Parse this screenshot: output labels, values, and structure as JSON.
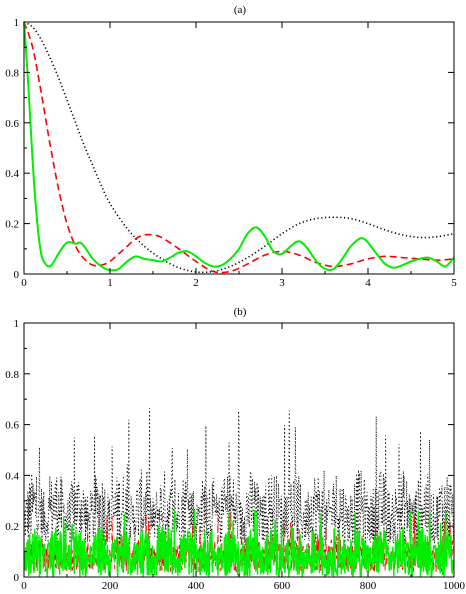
{
  "chart_data": [
    {
      "type": "line",
      "title": "(a)",
      "xlabel": "",
      "ylabel": "",
      "xlim": [
        0,
        5
      ],
      "ylim": [
        0,
        1
      ],
      "xticks": [
        "0",
        "1",
        "2",
        "3",
        "4",
        "5"
      ],
      "yticks": [
        "0",
        "0.2",
        "0.4",
        "0.6",
        "0.8",
        "1"
      ],
      "grid": false,
      "series": [
        {
          "style": "dotted",
          "color": "#000000",
          "x": [
            0,
            0.1,
            0.2,
            0.3,
            0.4,
            0.5,
            0.6,
            0.7,
            0.8,
            0.9,
            1.0,
            1.2,
            1.4,
            1.6,
            1.8,
            2.0,
            2.2,
            2.4,
            2.6,
            2.8,
            3.0,
            3.2,
            3.4,
            3.6,
            3.8,
            4.0,
            4.2,
            4.4,
            4.6,
            4.8,
            5.0
          ],
          "y": [
            1.0,
            0.98,
            0.93,
            0.86,
            0.78,
            0.69,
            0.6,
            0.51,
            0.43,
            0.35,
            0.28,
            0.18,
            0.11,
            0.06,
            0.025,
            0.008,
            0.01,
            0.03,
            0.065,
            0.11,
            0.16,
            0.2,
            0.22,
            0.225,
            0.22,
            0.2,
            0.175,
            0.155,
            0.145,
            0.148,
            0.16
          ]
        },
        {
          "style": "dashed",
          "color": "#ff0000",
          "x": [
            0,
            0.1,
            0.2,
            0.3,
            0.4,
            0.5,
            0.6,
            0.7,
            0.8,
            0.9,
            1.0,
            1.1,
            1.2,
            1.3,
            1.4,
            1.5,
            1.6,
            1.8,
            2.0,
            2.2,
            2.4,
            2.6,
            2.8,
            3.0,
            3.2,
            3.4,
            3.6,
            3.8,
            4.0,
            4.2,
            4.4,
            4.6,
            4.8,
            5.0
          ],
          "y": [
            1.0,
            0.9,
            0.72,
            0.52,
            0.34,
            0.2,
            0.11,
            0.06,
            0.035,
            0.035,
            0.05,
            0.08,
            0.11,
            0.14,
            0.155,
            0.155,
            0.145,
            0.1,
            0.05,
            0.01,
            0.01,
            0.04,
            0.075,
            0.09,
            0.075,
            0.045,
            0.03,
            0.04,
            0.06,
            0.07,
            0.065,
            0.06,
            0.055,
            0.06
          ]
        },
        {
          "style": "solid",
          "color": "#00ee00",
          "x": [
            0,
            0.05,
            0.1,
            0.15,
            0.2,
            0.25,
            0.3,
            0.35,
            0.4,
            0.5,
            0.6,
            0.65,
            0.7,
            0.8,
            0.9,
            1.0,
            1.1,
            1.2,
            1.3,
            1.4,
            1.5,
            1.6,
            1.7,
            1.8,
            1.9,
            2.0,
            2.1,
            2.2,
            2.3,
            2.4,
            2.5,
            2.6,
            2.7,
            2.8,
            2.9,
            3.0,
            3.1,
            3.2,
            3.3,
            3.4,
            3.5,
            3.6,
            3.7,
            3.8,
            3.9,
            3.95,
            4.0,
            4.1,
            4.2,
            4.3,
            4.4,
            4.5,
            4.6,
            4.7,
            4.8,
            4.9,
            5.0
          ],
          "y": [
            1.0,
            0.75,
            0.45,
            0.22,
            0.08,
            0.04,
            0.03,
            0.05,
            0.08,
            0.125,
            0.12,
            0.125,
            0.11,
            0.06,
            0.03,
            0.015,
            0.02,
            0.05,
            0.07,
            0.06,
            0.055,
            0.05,
            0.065,
            0.085,
            0.09,
            0.07,
            0.045,
            0.03,
            0.035,
            0.06,
            0.1,
            0.16,
            0.185,
            0.15,
            0.09,
            0.08,
            0.11,
            0.13,
            0.1,
            0.05,
            0.02,
            0.02,
            0.06,
            0.11,
            0.14,
            0.14,
            0.125,
            0.08,
            0.04,
            0.025,
            0.035,
            0.05,
            0.06,
            0.065,
            0.05,
            0.03,
            0.065
          ]
        }
      ]
    },
    {
      "type": "line",
      "title": "(b)",
      "xlabel": "",
      "ylabel": "",
      "xlim": [
        0,
        1000
      ],
      "ylim": [
        0,
        1
      ],
      "xticks": [
        "0",
        "200",
        "400",
        "600",
        "800",
        "1000"
      ],
      "yticks": [
        "0",
        "0.2",
        "0.4",
        "0.6",
        "0.8",
        "1"
      ],
      "grid": false,
      "series": [
        {
          "style": "dotted",
          "color": "#000000",
          "approx_mean": 0.23,
          "approx_peak": 0.68
        },
        {
          "style": "dashed",
          "color": "#ff0000",
          "approx_mean": 0.1,
          "approx_peak": 0.26
        },
        {
          "style": "solid",
          "color": "#00ee00",
          "approx_mean": 0.1,
          "approx_peak": 0.27
        }
      ]
    }
  ]
}
